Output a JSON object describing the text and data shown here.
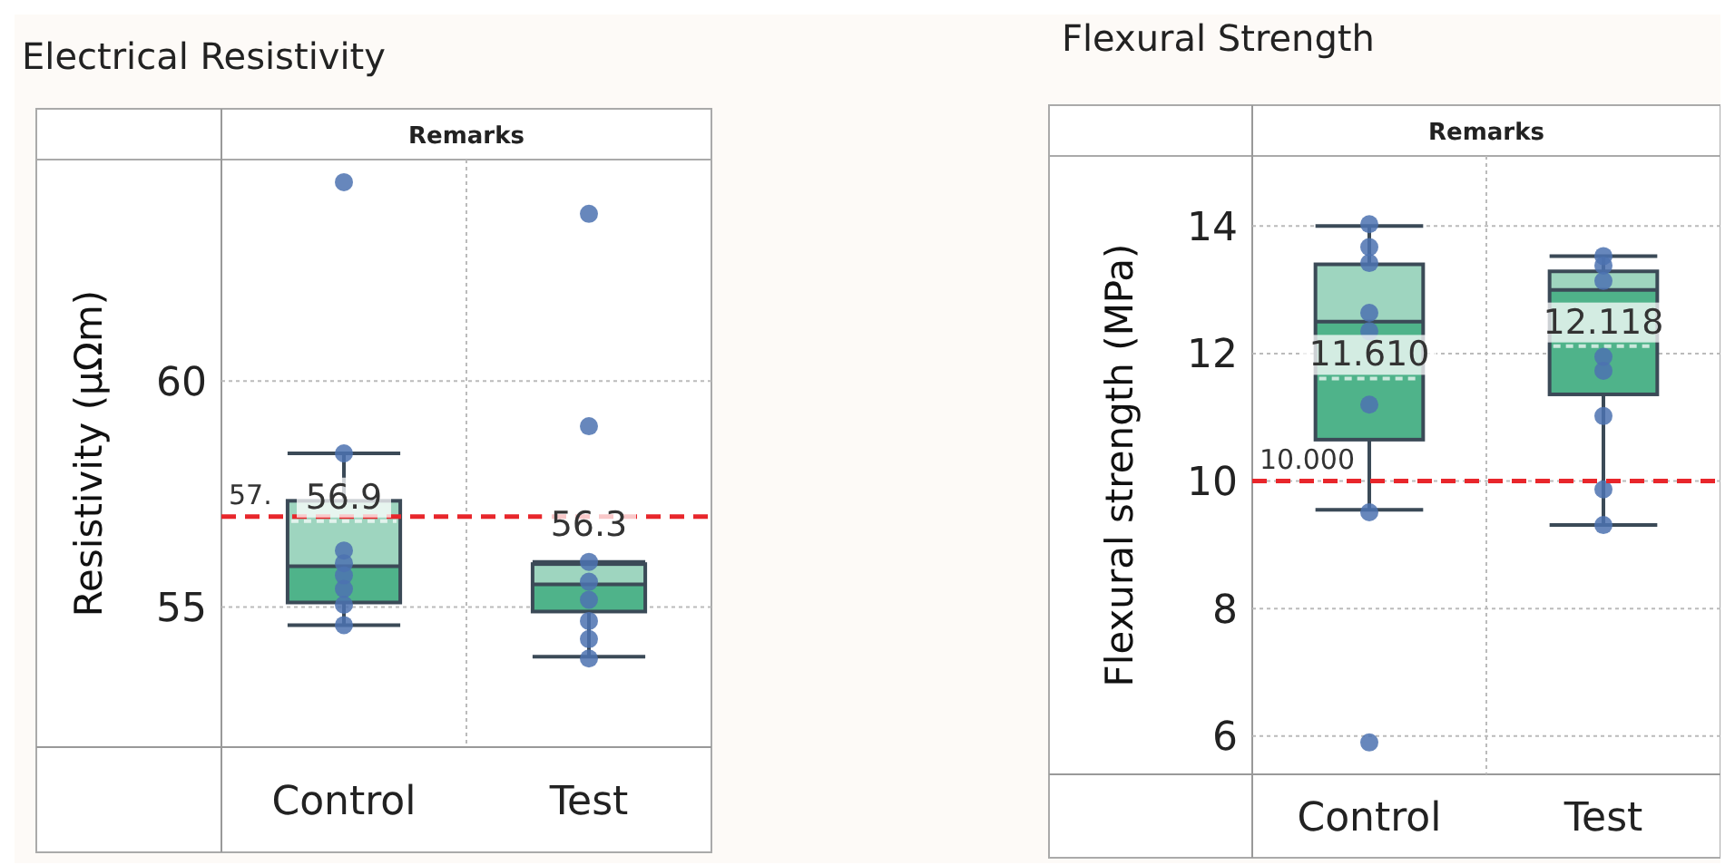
{
  "chart_data": [
    {
      "type": "box",
      "title": "Electrical Resistivity",
      "xlabel": "Remarks",
      "ylabel": "Resistivity (µΩm)",
      "categories": [
        "Control",
        "Test"
      ],
      "ylim": [
        51.9,
        64.9
      ],
      "yticks": [
        55,
        60
      ],
      "grid": true,
      "series": [
        {
          "type": "box",
          "color": "#4fb38a",
          "boxes": [
            {
              "low": 54.6,
              "q1": 55.1,
              "median": 55.9,
              "q3": 57.35,
              "high": 58.4,
              "mean": 56.9
            },
            {
              "low": 53.9,
              "q1": 54.9,
              "median": 55.5,
              "q3": 55.95,
              "high": 56.0,
              "mean": 56.3
            }
          ]
        },
        {
          "type": "scatter",
          "color": "#4c72b0",
          "x": [
            "Control",
            "Control",
            "Control",
            "Control",
            "Control",
            "Control",
            "Control",
            "Control",
            "Test",
            "Test",
            "Test",
            "Test",
            "Test",
            "Test",
            "Test",
            "Test"
          ],
          "values": [
            64.4,
            58.4,
            56.25,
            55.97,
            55.7,
            55.4,
            55.05,
            54.6,
            63.7,
            59.0,
            56.0,
            55.56,
            55.16,
            54.69,
            54.29,
            53.86
          ]
        }
      ],
      "ref_lines": [
        {
          "axis": "y",
          "value": 57,
          "label": "57.",
          "color": "#e8262b",
          "line_style": "dashed"
        }
      ],
      "annotations": [
        "56.9",
        "56.3"
      ]
    },
    {
      "type": "box",
      "title": "Flexural Strength",
      "xlabel": "Remarks",
      "ylabel": "Flexural strength (MPa)",
      "categories": [
        "Control",
        "Test"
      ],
      "ylim": [
        5.4,
        15.1
      ],
      "yticks": [
        6,
        8,
        10,
        12,
        14
      ],
      "grid": true,
      "series": [
        {
          "type": "box",
          "color": "#4fb38a",
          "boxes": [
            {
              "low": 9.55,
              "q1": 10.65,
              "median": 12.5,
              "q3": 13.4,
              "high": 14.0,
              "mean": 11.61
            },
            {
              "low": 9.31,
              "q1": 11.36,
              "median": 13.0,
              "q3": 13.29,
              "high": 13.53,
              "mean": 12.118
            }
          ]
        },
        {
          "type": "scatter",
          "color": "#4c72b0",
          "x": [
            "Control",
            "Control",
            "Control",
            "Control",
            "Control",
            "Control",
            "Control",
            "Control",
            "Test",
            "Test",
            "Test",
            "Test",
            "Test",
            "Test",
            "Test",
            "Test"
          ],
          "values": [
            14.03,
            13.67,
            13.42,
            12.64,
            12.35,
            11.2,
            9.51,
            5.9,
            13.53,
            13.38,
            13.14,
            11.95,
            11.73,
            11.02,
            9.87,
            9.31
          ]
        }
      ],
      "ref_lines": [
        {
          "axis": "y",
          "value": 10,
          "label": "10.000",
          "color": "#e8262b",
          "line_style": "dashed"
        }
      ],
      "annotations": [
        "11.610",
        "12.118"
      ]
    }
  ]
}
